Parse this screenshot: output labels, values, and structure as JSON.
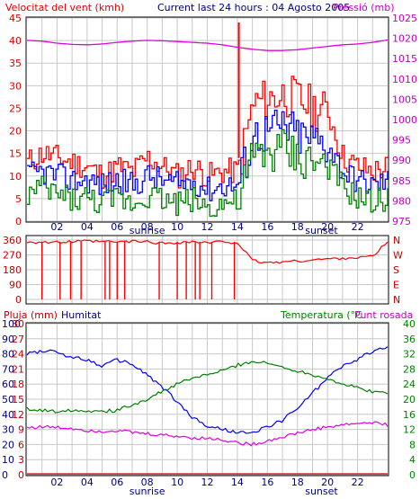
{
  "header": {
    "wind_title": "Velocitat del vent (kmh)",
    "current": "Current last 24 hours : 04 Agosto 2005",
    "pressure_title": "Pressió (mb)"
  },
  "colors": {
    "red": "#ff0000",
    "blue": "#0000ff",
    "green": "#008000",
    "magenta": "#e000e0",
    "navy": "#000080",
    "darkred": "#c00000",
    "grid": "#c8c8c8"
  },
  "chart_data": [
    {
      "id": "wind_pressure",
      "type": "line",
      "title": "Velocitat del vent (kmh)",
      "subtitle": "Current last 24 hours : 04 Agosto 2005",
      "xlabel": "",
      "ylabel": "Velocitat del vent (kmh)",
      "ylim": [
        0,
        45
      ],
      "y_ticks": [
        "0",
        "5",
        "10",
        "15",
        "20",
        "25",
        "30",
        "35",
        "40",
        "45"
      ],
      "y2label": "Pressió (mb)",
      "y2lim": [
        975,
        1025
      ],
      "y2_ticks": [
        "975",
        "980",
        "985",
        "990",
        "995",
        "1000",
        "1005",
        "1010",
        "1015",
        "1020",
        "1025"
      ],
      "x_ticks": [
        "02",
        "04",
        "06",
        "08",
        "10",
        "12",
        "14",
        "16",
        "18",
        "20",
        "22"
      ],
      "x_markers": [
        "sunrise",
        "sunset"
      ],
      "grid": true,
      "x_hours": [
        0,
        1,
        2,
        3,
        4,
        5,
        6,
        7,
        8,
        9,
        10,
        11,
        12,
        13,
        14,
        15,
        16,
        17,
        18,
        19,
        20,
        21,
        22,
        23,
        24
      ],
      "series": [
        {
          "values": [
            13,
            15,
            14,
            13,
            12,
            10,
            12,
            11,
            14,
            12,
            10,
            12,
            10,
            11,
            11,
            26,
            27,
            28,
            27,
            25,
            24,
            14,
            12,
            11,
            12
          ]
        },
        {
          "values": [
            10,
            11,
            10,
            9,
            9,
            8,
            9,
            8,
            10,
            9,
            8,
            9,
            7,
            8,
            8,
            19,
            20,
            21,
            19,
            18,
            17,
            11,
            9,
            8,
            9
          ]
        },
        {
          "values": [
            6,
            7,
            6,
            5,
            5,
            4,
            5,
            4,
            6,
            5,
            4,
            5,
            3,
            4,
            4,
            14,
            15,
            16,
            14,
            13,
            12,
            7,
            5,
            4,
            5
          ]
        },
        {
          "values": [
            1019.5,
            1019.3,
            1018.8,
            1018.5,
            1018.4,
            1018.6,
            1019.0,
            1019.3,
            1019.5,
            1019.4,
            1019.2,
            1019.0,
            1018.8,
            1018.4,
            1017.8,
            1017.3,
            1017.0,
            1017.0,
            1017.2,
            1017.6,
            1018.0,
            1018.4,
            1018.6,
            1019.0,
            1019.6
          ]
        }
      ]
    },
    {
      "id": "wind_direction",
      "type": "line",
      "title": "",
      "xlabel": "",
      "ylabel": "",
      "ylim": [
        0,
        360
      ],
      "y_ticks": [
        "0",
        "90",
        "180",
        "270",
        "360"
      ],
      "y2_ticks": [
        "N",
        "W",
        "S",
        "E",
        "N"
      ],
      "grid": true,
      "x_hours": [
        0,
        2,
        3,
        4,
        5,
        6,
        7,
        8,
        9,
        10,
        11,
        12,
        13,
        14,
        15,
        16,
        17,
        18,
        19,
        20,
        21,
        22,
        23,
        24
      ],
      "series": [
        {
          "values": [
            350,
            345,
            350,
            352,
            350,
            348,
            352,
            350,
            340,
            345,
            350,
            342,
            350,
            345,
            235,
            222,
            228,
            232,
            240,
            245,
            250,
            255,
            260,
            350
          ]
        }
      ]
    },
    {
      "id": "rain_humidity_temp",
      "type": "line",
      "title": "",
      "xlabel": "",
      "ylabel": "Pluja (mm)",
      "y_left_labels": [
        "Pluja (mm)",
        "Humitat"
      ],
      "y_right_labels": [
        "Temperatura (°C",
        "Punt rosada"
      ],
      "rain_ylim": [
        0,
        30
      ],
      "humidity_ylim": [
        0,
        100
      ],
      "temp_ylim": [
        0,
        40
      ],
      "rain_ticks": [
        "0",
        "3",
        "6",
        "9",
        "12",
        "15",
        "18",
        "21",
        "24",
        "27",
        "30"
      ],
      "humidity_ticks": [
        "0",
        "10",
        "20",
        "30",
        "40",
        "50",
        "60",
        "70",
        "80",
        "90",
        "100"
      ],
      "temp_ticks": [
        "0",
        "4",
        "8",
        "12",
        "16",
        "20",
        "24",
        "28",
        "32",
        "36",
        "40"
      ],
      "x_ticks": [
        "02",
        "04",
        "06",
        "08",
        "10",
        "12",
        "14",
        "16",
        "18",
        "20",
        "22"
      ],
      "x_markers": [
        "sunrise",
        "sunset"
      ],
      "grid": true,
      "x_hours": [
        0,
        1,
        2,
        3,
        4,
        5,
        6,
        7,
        8,
        9,
        10,
        11,
        12,
        13,
        14,
        15,
        16,
        17,
        18,
        19,
        20,
        21,
        22,
        23,
        24
      ],
      "series": [
        {
          "name": "Humitat",
          "values": [
            80,
            82,
            81,
            78,
            76,
            72,
            76,
            73,
            66,
            58,
            48,
            38,
            32,
            30,
            28,
            27,
            32,
            36,
            44,
            54,
            64,
            72,
            76,
            82,
            84
          ]
        },
        {
          "name": "Temperatura (°C",
          "values": [
            17.5,
            17.0,
            16.8,
            17.2,
            17.0,
            16.8,
            17.0,
            18.5,
            20.0,
            22.0,
            24.0,
            25.5,
            26.5,
            27.5,
            29.0,
            30.0,
            29.5,
            28.5,
            27.5,
            26.5,
            25.5,
            24.0,
            23.0,
            22.0,
            21.5
          ]
        },
        {
          "name": "Punt rosada",
          "values": [
            12.5,
            12.7,
            12.5,
            12.3,
            11.8,
            11.5,
            11.8,
            11.2,
            10.8,
            10.5,
            10.2,
            9.8,
            9.6,
            9.3,
            8.5,
            8.0,
            9.0,
            10.0,
            11.0,
            12.0,
            12.6,
            13.2,
            13.6,
            13.8,
            13.2
          ]
        },
        {
          "name": "Pluja (mm)",
          "values": [
            0,
            0,
            0,
            0,
            0,
            0,
            0,
            0,
            0,
            0,
            0,
            0,
            0,
            0,
            0,
            0,
            0,
            0,
            0,
            0,
            0,
            0,
            0,
            0,
            0
          ]
        }
      ]
    }
  ]
}
